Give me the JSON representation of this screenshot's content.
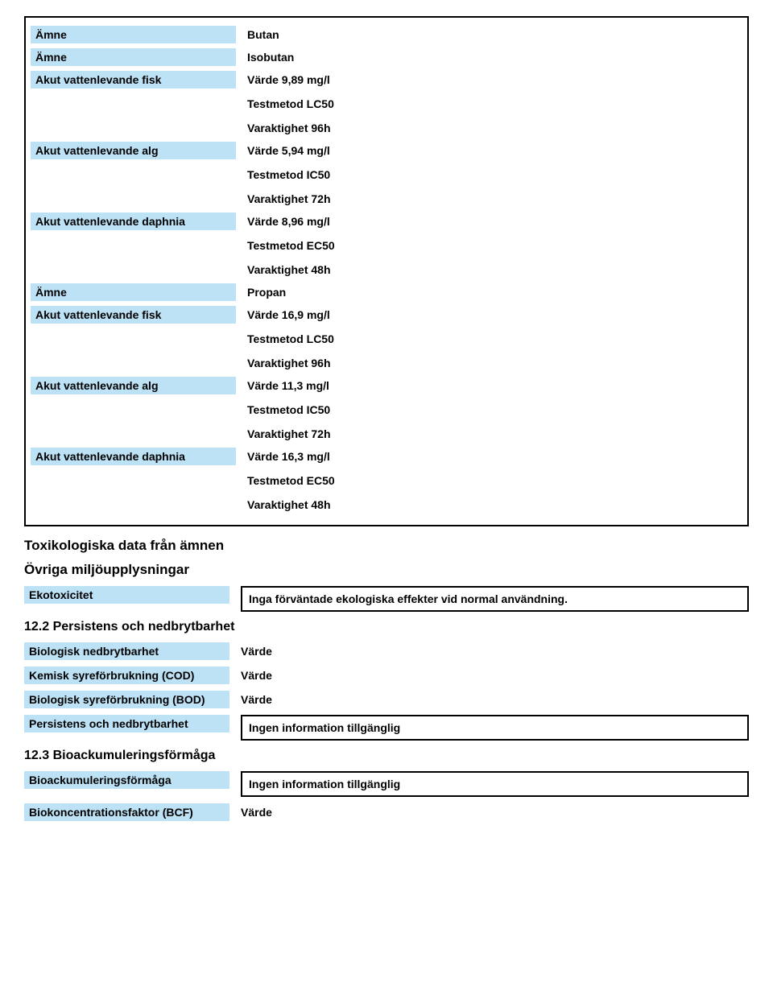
{
  "colors": {
    "label_bg": "#bde1f5",
    "border": "#000000",
    "text": "#000000",
    "page_bg": "#ffffff"
  },
  "typography": {
    "font_family": "Arial",
    "label_fontsize_pt": 10.5,
    "heading_fontsize_pt": 13,
    "subheading_fontsize_pt": 12,
    "weight": "bold"
  },
  "box1": {
    "rows": [
      {
        "label": "Ämne",
        "lines": [
          "Butan"
        ]
      },
      {
        "label": "Ämne",
        "lines": [
          "Isobutan"
        ]
      },
      {
        "label": "Akut vattenlevande fisk",
        "lines": [
          "Värde   9,89 mg/l",
          "Testmetod    LC50",
          "Varaktighet     96h"
        ]
      },
      {
        "label": "Akut vattenlevande alg",
        "lines": [
          "Värde   5,94 mg/l",
          "Testmetod    IC50",
          "Varaktighet     72h"
        ]
      },
      {
        "label": "Akut vattenlevande daphnia",
        "lines": [
          "Värde   8,96 mg/l",
          "Testmetod    EC50",
          "Varaktighet     48h"
        ]
      },
      {
        "label": "Ämne",
        "lines": [
          "Propan"
        ]
      },
      {
        "label": "Akut vattenlevande fisk",
        "lines": [
          "Värde   16,9 mg/l",
          "Testmetod    LC50",
          "Varaktighet     96h"
        ]
      },
      {
        "label": "Akut vattenlevande alg",
        "lines": [
          "Värde   11,3 mg/l",
          "Testmetod    IC50",
          "Varaktighet     72h"
        ]
      },
      {
        "label": "Akut vattenlevande daphnia",
        "lines": [
          "Värde   16,3 mg/l",
          "Testmetod    EC50",
          "Varaktighet     48h"
        ]
      }
    ]
  },
  "heading_tox": "Toxikologiska data från ämnen",
  "heading_env": "Övriga miljöupplysningar",
  "ekotox": {
    "label": "Ekotoxicitet",
    "value": "Inga förväntade ekologiska effekter vid normal användning."
  },
  "sec_12_2": {
    "title": "12.2 Persistens och nedbrytbarhet",
    "rows": [
      {
        "label": "Biologisk nedbrytbarhet",
        "value": "Värde"
      },
      {
        "label": "Kemisk syreförbrukning (COD)",
        "value": "Värde"
      },
      {
        "label": "Biologisk syreförbrukning (BOD)",
        "value": "Värde"
      }
    ],
    "persist": {
      "label": "Persistens och nedbrytbarhet",
      "value": "Ingen information tillgänglig"
    }
  },
  "sec_12_3": {
    "title": "12.3 Bioackumuleringsförmåga",
    "bioack": {
      "label": "Bioackumuleringsförmåga",
      "value": "Ingen information tillgänglig"
    },
    "bcf": {
      "label": "Biokoncentrationsfaktor (BCF)",
      "value": "Värde"
    }
  }
}
